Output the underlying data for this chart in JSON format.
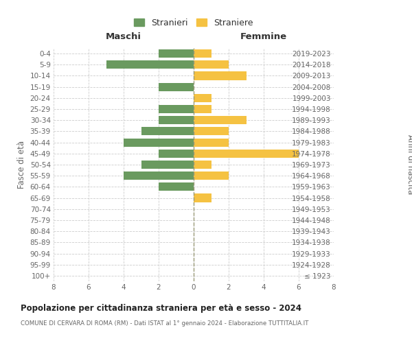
{
  "age_groups": [
    "100+",
    "95-99",
    "90-94",
    "85-89",
    "80-84",
    "75-79",
    "70-74",
    "65-69",
    "60-64",
    "55-59",
    "50-54",
    "45-49",
    "40-44",
    "35-39",
    "30-34",
    "25-29",
    "20-24",
    "15-19",
    "10-14",
    "5-9",
    "0-4"
  ],
  "birth_years": [
    "≤ 1923",
    "1924-1928",
    "1929-1933",
    "1934-1938",
    "1939-1943",
    "1944-1948",
    "1949-1953",
    "1954-1958",
    "1959-1963",
    "1964-1968",
    "1969-1973",
    "1974-1978",
    "1979-1983",
    "1984-1988",
    "1989-1993",
    "1994-1998",
    "1999-2003",
    "2004-2008",
    "2009-2013",
    "2014-2018",
    "2019-2023"
  ],
  "maschi": [
    0,
    0,
    0,
    0,
    0,
    0,
    0,
    0,
    2,
    4,
    3,
    2,
    4,
    3,
    2,
    2,
    0,
    2,
    0,
    5,
    2
  ],
  "femmine": [
    0,
    0,
    0,
    0,
    0,
    0,
    0,
    1,
    0,
    2,
    1,
    6,
    2,
    2,
    3,
    1,
    1,
    0,
    3,
    2,
    1
  ],
  "male_color": "#6a9a5f",
  "female_color": "#f5c242",
  "background_color": "#ffffff",
  "grid_color": "#cccccc",
  "title": "Popolazione per cittadinanza straniera per età e sesso - 2024",
  "subtitle": "COMUNE DI CERVARA DI ROMA (RM) - Dati ISTAT al 1° gennaio 2024 - Elaborazione TUTTITALIA.IT",
  "xlabel_left": "Maschi",
  "xlabel_right": "Femmine",
  "ylabel_left": "Fasce di età",
  "ylabel_right": "Anni di nascita",
  "legend_stranieri": "Stranieri",
  "legend_straniere": "Straniere",
  "xlim": 8,
  "bar_height": 0.75
}
